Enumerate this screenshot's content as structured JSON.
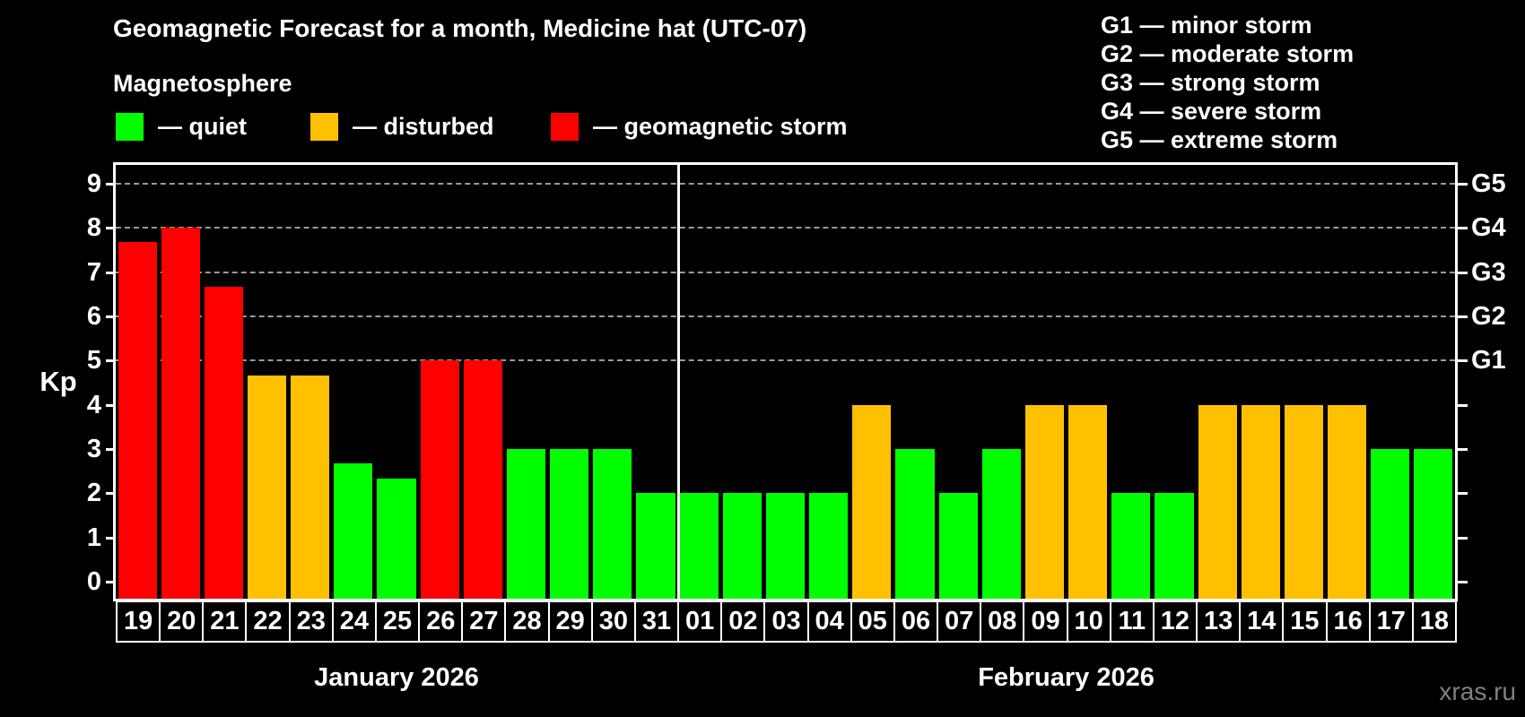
{
  "header": {
    "title": "Geomagnetic Forecast for a month, Medicine hat (UTC-07)"
  },
  "legend": {
    "title": "Magnetosphere",
    "items": [
      {
        "key": "quiet",
        "label": "— quiet",
        "color": "#00ff00"
      },
      {
        "key": "disturbed",
        "label": "— disturbed",
        "color": "#ffc000"
      },
      {
        "key": "storm",
        "label": "— geomagnetic storm",
        "color": "#ff0000"
      }
    ]
  },
  "g_legend": {
    "items": [
      "G1 — minor storm",
      "G2 — moderate storm",
      "G3 — strong storm",
      "G4 — severe storm",
      "G5 — extreme storm"
    ]
  },
  "watermark": "xras.ru",
  "chart_data": {
    "type": "bar",
    "title": "Geomagnetic Forecast for a month, Medicine hat (UTC-07)",
    "ylabel": "Kp",
    "ylim": [
      0,
      9
    ],
    "yticks": [
      0,
      1,
      2,
      3,
      4,
      5,
      6,
      7,
      8,
      9
    ],
    "gridlines": [
      5,
      6,
      7,
      8,
      9
    ],
    "grid": "dashed, horizontal, levels 5-9 only",
    "right_axis": [
      {
        "label": "G1",
        "value": 5
      },
      {
        "label": "G2",
        "value": 6
      },
      {
        "label": "G3",
        "value": 7
      },
      {
        "label": "G4",
        "value": 8
      },
      {
        "label": "G5",
        "value": 9
      }
    ],
    "status_colors": {
      "quiet": "#00ff00",
      "disturbed": "#ffc000",
      "storm": "#ff0000"
    },
    "months": [
      {
        "label": "January 2026",
        "days": [
          {
            "day": "19",
            "kp": 7.67,
            "status": "storm"
          },
          {
            "day": "20",
            "kp": 8.0,
            "status": "storm"
          },
          {
            "day": "21",
            "kp": 6.67,
            "status": "storm"
          },
          {
            "day": "22",
            "kp": 4.67,
            "status": "disturbed"
          },
          {
            "day": "23",
            "kp": 4.67,
            "status": "disturbed"
          },
          {
            "day": "24",
            "kp": 2.67,
            "status": "quiet"
          },
          {
            "day": "25",
            "kp": 2.33,
            "status": "quiet"
          },
          {
            "day": "26",
            "kp": 5.0,
            "status": "storm"
          },
          {
            "day": "27",
            "kp": 5.0,
            "status": "storm"
          },
          {
            "day": "28",
            "kp": 3.0,
            "status": "quiet"
          },
          {
            "day": "29",
            "kp": 3.0,
            "status": "quiet"
          },
          {
            "day": "30",
            "kp": 3.0,
            "status": "quiet"
          },
          {
            "day": "31",
            "kp": 2.0,
            "status": "quiet"
          }
        ]
      },
      {
        "label": "February 2026",
        "days": [
          {
            "day": "01",
            "kp": 2.0,
            "status": "quiet"
          },
          {
            "day": "02",
            "kp": 2.0,
            "status": "quiet"
          },
          {
            "day": "03",
            "kp": 2.0,
            "status": "quiet"
          },
          {
            "day": "04",
            "kp": 2.0,
            "status": "quiet"
          },
          {
            "day": "05",
            "kp": 4.0,
            "status": "disturbed"
          },
          {
            "day": "06",
            "kp": 3.0,
            "status": "quiet"
          },
          {
            "day": "07",
            "kp": 2.0,
            "status": "quiet"
          },
          {
            "day": "08",
            "kp": 3.0,
            "status": "quiet"
          },
          {
            "day": "09",
            "kp": 4.0,
            "status": "disturbed"
          },
          {
            "day": "10",
            "kp": 4.0,
            "status": "disturbed"
          },
          {
            "day": "11",
            "kp": 2.0,
            "status": "quiet"
          },
          {
            "day": "12",
            "kp": 2.0,
            "status": "quiet"
          },
          {
            "day": "13",
            "kp": 4.0,
            "status": "disturbed"
          },
          {
            "day": "14",
            "kp": 4.0,
            "status": "disturbed"
          },
          {
            "day": "15",
            "kp": 4.0,
            "status": "disturbed"
          },
          {
            "day": "16",
            "kp": 4.0,
            "status": "disturbed"
          },
          {
            "day": "17",
            "kp": 3.0,
            "status": "quiet"
          },
          {
            "day": "18",
            "kp": 3.0,
            "status": "quiet"
          }
        ]
      }
    ]
  }
}
